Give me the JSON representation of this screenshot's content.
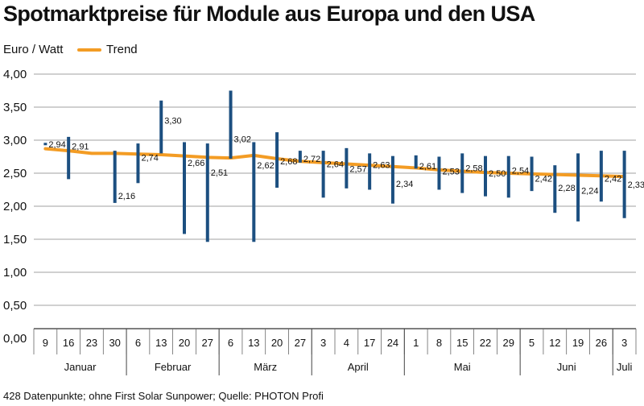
{
  "chart_data": {
    "type": "range-bar",
    "title": "Spotmarktpreise für Module aus Europa und den USA",
    "ylabel": "Euro / Watt",
    "legend": [
      {
        "name": "Trend",
        "color": "#f39c24"
      }
    ],
    "ylim": [
      0,
      4
    ],
    "yticks": [
      "0,00",
      "0,50",
      "1,00",
      "1,50",
      "2,00",
      "2,50",
      "3,00",
      "3,50",
      "4,00"
    ],
    "categories": [
      "9",
      "16",
      "23",
      "30",
      "6",
      "13",
      "20",
      "27",
      "6",
      "13",
      "20",
      "27",
      "3",
      "4",
      "17",
      "24",
      "1",
      "8",
      "15",
      "22",
      "29",
      "5",
      "12",
      "19",
      "26",
      "3"
    ],
    "months": [
      {
        "name": "Januar",
        "span": [
          0,
          3
        ]
      },
      {
        "name": "Februar",
        "span": [
          4,
          7
        ]
      },
      {
        "name": "März",
        "span": [
          8,
          11
        ]
      },
      {
        "name": "April",
        "span": [
          12,
          15
        ]
      },
      {
        "name": "Mai",
        "span": [
          16,
          20
        ]
      },
      {
        "name": "Juni",
        "span": [
          21,
          24
        ]
      },
      {
        "name": "Juli",
        "span": [
          25,
          25
        ]
      }
    ],
    "ranges": [
      {
        "low": 2.93,
        "high": 2.96,
        "value": 2.94,
        "label": "2,94"
      },
      {
        "low": 2.41,
        "high": 3.05,
        "value": 2.91,
        "label": "2,91"
      },
      {
        "low": null,
        "high": null,
        "value": null,
        "label": ""
      },
      {
        "low": 2.05,
        "high": 2.84,
        "value": 2.16,
        "label": "2,16"
      },
      {
        "low": 2.35,
        "high": 2.95,
        "value": 2.74,
        "label": "2,74"
      },
      {
        "low": 2.8,
        "high": 3.6,
        "value": 3.3,
        "label": "3,30"
      },
      {
        "low": 1.58,
        "high": 2.97,
        "value": 2.66,
        "label": "2,66"
      },
      {
        "low": 1.46,
        "high": 2.95,
        "value": 2.51,
        "label": "2,51"
      },
      {
        "low": 2.72,
        "high": 3.75,
        "value": 3.02,
        "label": "3,02"
      },
      {
        "low": 1.46,
        "high": 2.97,
        "value": 2.62,
        "label": "2,62"
      },
      {
        "low": 2.28,
        "high": 3.12,
        "value": 2.68,
        "label": "2,68"
      },
      {
        "low": 2.66,
        "high": 2.84,
        "value": 2.72,
        "label": "2,72"
      },
      {
        "low": 2.13,
        "high": 2.84,
        "value": 2.64,
        "label": "2,64"
      },
      {
        "low": 2.27,
        "high": 2.88,
        "value": 2.57,
        "label": "2,57"
      },
      {
        "low": 2.25,
        "high": 2.8,
        "value": 2.63,
        "label": "2,63"
      },
      {
        "low": 2.04,
        "high": 2.76,
        "value": 2.34,
        "label": "2,34"
      },
      {
        "low": 2.57,
        "high": 2.77,
        "value": 2.61,
        "label": "2,61"
      },
      {
        "low": 2.25,
        "high": 2.75,
        "value": 2.53,
        "label": "2,53"
      },
      {
        "low": 2.2,
        "high": 2.8,
        "value": 2.58,
        "label": "2,58"
      },
      {
        "low": 2.15,
        "high": 2.76,
        "value": 2.5,
        "label": "2,50"
      },
      {
        "low": 2.13,
        "high": 2.76,
        "value": 2.54,
        "label": "2,54"
      },
      {
        "low": 2.23,
        "high": 2.75,
        "value": 2.42,
        "label": "2,42"
      },
      {
        "low": 1.9,
        "high": 2.62,
        "value": 2.28,
        "label": "2,28"
      },
      {
        "low": 1.77,
        "high": 2.8,
        "value": 2.24,
        "label": "2,24"
      },
      {
        "low": 2.07,
        "high": 2.84,
        "value": 2.42,
        "label": "2,42"
      },
      {
        "low": 1.82,
        "high": 2.84,
        "value": 2.33,
        "label": "2,33"
      }
    ],
    "trend": {
      "name": "Trend",
      "values": [
        2.87,
        2.84,
        2.8,
        2.8,
        2.79,
        2.78,
        2.76,
        2.74,
        2.73,
        2.77,
        2.72,
        2.68,
        2.66,
        2.64,
        2.62,
        2.6,
        2.58,
        2.55,
        2.53,
        2.51,
        2.5,
        2.49,
        2.48,
        2.47,
        2.46,
        2.45
      ]
    },
    "grid": true,
    "legend_position": "top-left",
    "colors": {
      "bars": "#1c4f80",
      "trend": "#f39c24",
      "grid": "#808080"
    }
  },
  "source": "428 Datenpunkte; ohne First Solar Sunpower; Quelle: PHOTON Profi"
}
